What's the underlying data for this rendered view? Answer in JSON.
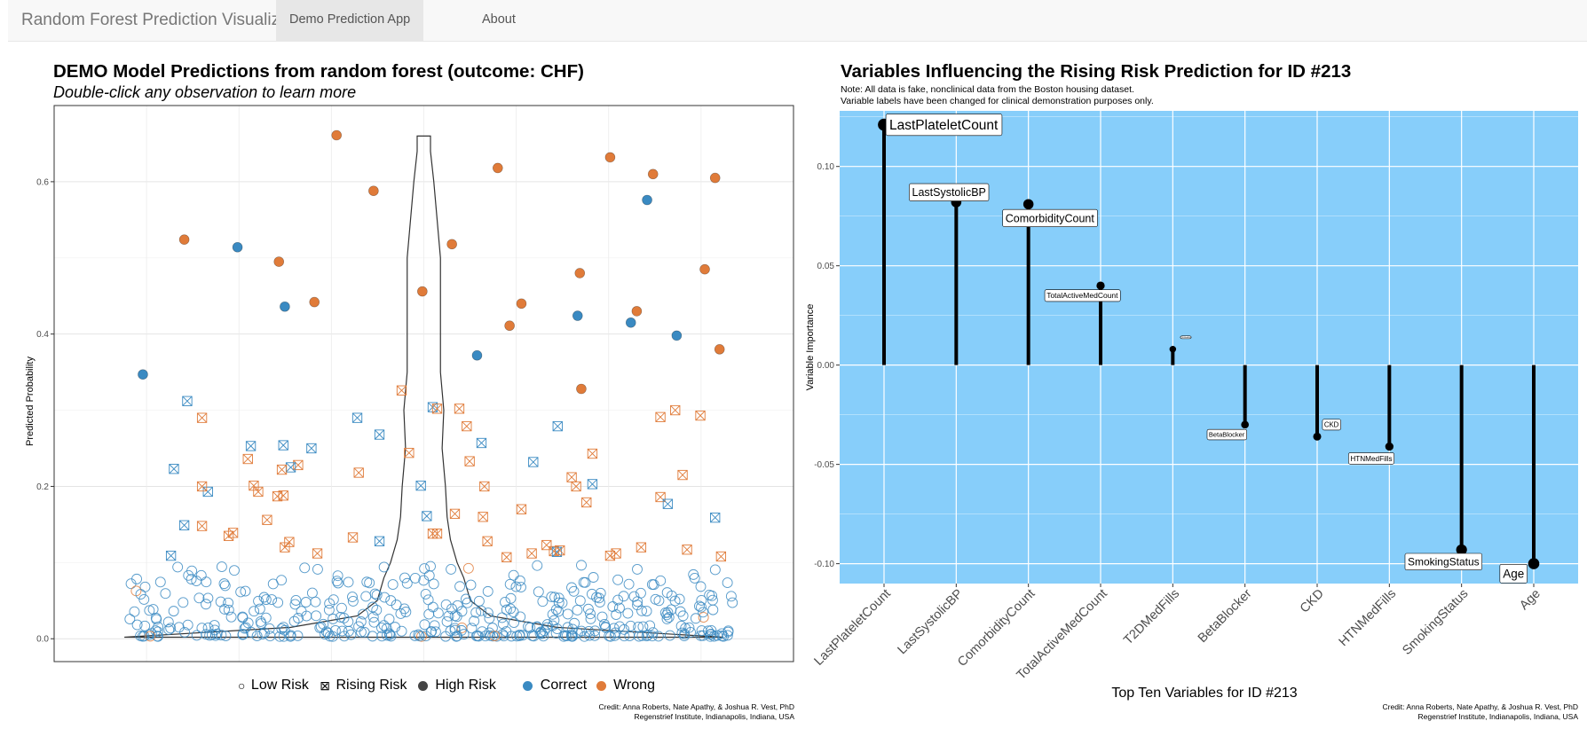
{
  "navbar": {
    "brand": "Random Forest Prediction Visualization",
    "tabs": [
      {
        "label": "Demo Prediction App",
        "active": true
      },
      {
        "label": "About",
        "active": false
      }
    ]
  },
  "left_panel": {
    "title": "DEMO Model Predictions from random forest (outcome: CHF)",
    "subtitle": "Double-click any observation to learn more",
    "credit_line1": "Credit: Anna Roberts, Nate Apathy, & Joshua R. Vest, PhD",
    "credit_line2": "Regenstrief Institute, Indianapolis, Indiana, USA",
    "legend": {
      "low_risk": "Low Risk",
      "rising_risk": "Rising Risk",
      "high_risk": "High Risk",
      "correct": "Correct",
      "wrong": "Wrong",
      "low_symbol": "○",
      "rising_symbol": "⊠"
    }
  },
  "right_panel": {
    "title": "Variables Influencing the Rising Risk Prediction for ID #213",
    "note_line1": "Note: All data is fake, nonclinical data from the Boston housing dataset.",
    "note_line2": "Variable labels have been changed for clinical demonstration purposes only.",
    "credit_line1": "Credit: Anna Roberts, Nate Apathy, & Joshua R. Vest, PhD",
    "credit_line2": "Regenstrief Institute, Indianapolis, Indiana, USA"
  },
  "colors": {
    "correct": "#3a8ac2",
    "wrong": "#e07b39",
    "plot_bg_right": "#87cefa",
    "nav_bg": "#f8f8f8"
  },
  "chart_data": [
    {
      "type": "scatter",
      "title": "DEMO Model Predictions from random forest (outcome: CHF)",
      "xlabel": "",
      "ylabel": "Predicted Probability",
      "ylim": [
        -0.03,
        0.7
      ],
      "xlim": [
        0,
        1
      ],
      "yticks": [
        "0.0",
        "0.2",
        "0.4",
        "0.6"
      ],
      "ytick_values": [
        0,
        0.2,
        0.4,
        0.6
      ],
      "violin_profile": [
        [
          0.002,
          0.09
        ],
        [
          0.015,
          0.04
        ],
        [
          0.03,
          0.02
        ],
        [
          0.05,
          0.014
        ],
        [
          0.08,
          0.012
        ],
        [
          0.1,
          0.01
        ],
        [
          0.13,
          0.008
        ],
        [
          0.16,
          0.007
        ],
        [
          0.2,
          0.0065
        ],
        [
          0.25,
          0.0055
        ],
        [
          0.3,
          0.006
        ],
        [
          0.35,
          0.005
        ],
        [
          0.4,
          0.005
        ],
        [
          0.45,
          0.005
        ],
        [
          0.5,
          0.005
        ],
        [
          0.55,
          0.004
        ],
        [
          0.6,
          0.003
        ],
        [
          0.64,
          0.002
        ],
        [
          0.66,
          0.002
        ]
      ],
      "high_risk_points": [
        {
          "x": 0.12,
          "y": 0.347,
          "status": "correct"
        },
        {
          "x": 0.176,
          "y": 0.524,
          "status": "wrong"
        },
        {
          "x": 0.248,
          "y": 0.514,
          "status": "correct"
        },
        {
          "x": 0.304,
          "y": 0.495,
          "status": "wrong"
        },
        {
          "x": 0.312,
          "y": 0.436,
          "status": "correct"
        },
        {
          "x": 0.352,
          "y": 0.442,
          "status": "wrong"
        },
        {
          "x": 0.382,
          "y": 0.661,
          "status": "wrong"
        },
        {
          "x": 0.432,
          "y": 0.588,
          "status": "wrong"
        },
        {
          "x": 0.498,
          "y": 0.456,
          "status": "wrong"
        },
        {
          "x": 0.538,
          "y": 0.518,
          "status": "wrong"
        },
        {
          "x": 0.572,
          "y": 0.372,
          "status": "correct"
        },
        {
          "x": 0.6,
          "y": 0.618,
          "status": "wrong"
        },
        {
          "x": 0.616,
          "y": 0.411,
          "status": "wrong"
        },
        {
          "x": 0.632,
          "y": 0.44,
          "status": "wrong"
        },
        {
          "x": 0.708,
          "y": 0.424,
          "status": "correct"
        },
        {
          "x": 0.711,
          "y": 0.48,
          "status": "wrong"
        },
        {
          "x": 0.713,
          "y": 0.328,
          "status": "wrong"
        },
        {
          "x": 0.752,
          "y": 0.632,
          "status": "wrong"
        },
        {
          "x": 0.78,
          "y": 0.415,
          "status": "correct"
        },
        {
          "x": 0.788,
          "y": 0.43,
          "status": "wrong"
        },
        {
          "x": 0.802,
          "y": 0.576,
          "status": "correct"
        },
        {
          "x": 0.81,
          "y": 0.61,
          "status": "wrong"
        },
        {
          "x": 0.842,
          "y": 0.398,
          "status": "correct"
        },
        {
          "x": 0.88,
          "y": 0.485,
          "status": "wrong"
        },
        {
          "x": 0.894,
          "y": 0.605,
          "status": "wrong"
        },
        {
          "x": 0.9,
          "y": 0.38,
          "status": "wrong"
        }
      ],
      "rising_risk_points": [
        {
          "x": 0.18,
          "y": 0.312,
          "status": "correct"
        },
        {
          "x": 0.2,
          "y": 0.29,
          "status": "wrong"
        },
        {
          "x": 0.162,
          "y": 0.223,
          "status": "correct"
        },
        {
          "x": 0.266,
          "y": 0.253,
          "status": "correct"
        },
        {
          "x": 0.31,
          "y": 0.254,
          "status": "correct"
        },
        {
          "x": 0.348,
          "y": 0.25,
          "status": "correct"
        },
        {
          "x": 0.33,
          "y": 0.228,
          "status": "wrong"
        },
        {
          "x": 0.32,
          "y": 0.225,
          "status": "correct"
        },
        {
          "x": 0.308,
          "y": 0.222,
          "status": "wrong"
        },
        {
          "x": 0.208,
          "y": 0.193,
          "status": "correct"
        },
        {
          "x": 0.2,
          "y": 0.2,
          "status": "wrong"
        },
        {
          "x": 0.27,
          "y": 0.201,
          "status": "wrong"
        },
        {
          "x": 0.262,
          "y": 0.236,
          "status": "wrong"
        },
        {
          "x": 0.276,
          "y": 0.193,
          "status": "wrong"
        },
        {
          "x": 0.302,
          "y": 0.187,
          "status": "wrong"
        },
        {
          "x": 0.31,
          "y": 0.188,
          "status": "wrong"
        },
        {
          "x": 0.288,
          "y": 0.156,
          "status": "wrong"
        },
        {
          "x": 0.176,
          "y": 0.149,
          "status": "correct"
        },
        {
          "x": 0.2,
          "y": 0.148,
          "status": "wrong"
        },
        {
          "x": 0.236,
          "y": 0.135,
          "status": "wrong"
        },
        {
          "x": 0.242,
          "y": 0.139,
          "status": "wrong"
        },
        {
          "x": 0.318,
          "y": 0.127,
          "status": "wrong"
        },
        {
          "x": 0.312,
          "y": 0.12,
          "status": "wrong"
        },
        {
          "x": 0.356,
          "y": 0.112,
          "status": "wrong"
        },
        {
          "x": 0.158,
          "y": 0.109,
          "status": "correct"
        },
        {
          "x": 0.41,
          "y": 0.29,
          "status": "correct"
        },
        {
          "x": 0.412,
          "y": 0.218,
          "status": "wrong"
        },
        {
          "x": 0.44,
          "y": 0.268,
          "status": "correct"
        },
        {
          "x": 0.404,
          "y": 0.133,
          "status": "wrong"
        },
        {
          "x": 0.44,
          "y": 0.128,
          "status": "correct"
        },
        {
          "x": 0.47,
          "y": 0.326,
          "status": "wrong"
        },
        {
          "x": 0.48,
          "y": 0.244,
          "status": "wrong"
        },
        {
          "x": 0.496,
          "y": 0.201,
          "status": "correct"
        },
        {
          "x": 0.504,
          "y": 0.161,
          "status": "correct"
        },
        {
          "x": 0.512,
          "y": 0.304,
          "status": "correct"
        },
        {
          "x": 0.518,
          "y": 0.302,
          "status": "wrong"
        },
        {
          "x": 0.512,
          "y": 0.138,
          "status": "wrong"
        },
        {
          "x": 0.518,
          "y": 0.138,
          "status": "wrong"
        },
        {
          "x": 0.548,
          "y": 0.302,
          "status": "wrong"
        },
        {
          "x": 0.558,
          "y": 0.279,
          "status": "wrong"
        },
        {
          "x": 0.562,
          "y": 0.233,
          "status": "wrong"
        },
        {
          "x": 0.542,
          "y": 0.164,
          "status": "wrong"
        },
        {
          "x": 0.578,
          "y": 0.257,
          "status": "correct"
        },
        {
          "x": 0.582,
          "y": 0.2,
          "status": "wrong"
        },
        {
          "x": 0.58,
          "y": 0.16,
          "status": "wrong"
        },
        {
          "x": 0.586,
          "y": 0.128,
          "status": "wrong"
        },
        {
          "x": 0.612,
          "y": 0.107,
          "status": "wrong"
        },
        {
          "x": 0.632,
          "y": 0.17,
          "status": "wrong"
        },
        {
          "x": 0.646,
          "y": 0.112,
          "status": "wrong"
        },
        {
          "x": 0.648,
          "y": 0.232,
          "status": "correct"
        },
        {
          "x": 0.666,
          "y": 0.123,
          "status": "wrong"
        },
        {
          "x": 0.676,
          "y": 0.115,
          "status": "wrong"
        },
        {
          "x": 0.68,
          "y": 0.114,
          "status": "correct"
        },
        {
          "x": 0.684,
          "y": 0.116,
          "status": "wrong"
        },
        {
          "x": 0.681,
          "y": 0.279,
          "status": "correct"
        },
        {
          "x": 0.7,
          "y": 0.212,
          "status": "wrong"
        },
        {
          "x": 0.706,
          "y": 0.2,
          "status": "wrong"
        },
        {
          "x": 0.72,
          "y": 0.179,
          "status": "wrong"
        },
        {
          "x": 0.728,
          "y": 0.203,
          "status": "correct"
        },
        {
          "x": 0.728,
          "y": 0.243,
          "status": "wrong"
        },
        {
          "x": 0.752,
          "y": 0.109,
          "status": "wrong"
        },
        {
          "x": 0.76,
          "y": 0.112,
          "status": "wrong"
        },
        {
          "x": 0.794,
          "y": 0.12,
          "status": "wrong"
        },
        {
          "x": 0.82,
          "y": 0.291,
          "status": "wrong"
        },
        {
          "x": 0.82,
          "y": 0.186,
          "status": "wrong"
        },
        {
          "x": 0.83,
          "y": 0.177,
          "status": "correct"
        },
        {
          "x": 0.84,
          "y": 0.3,
          "status": "wrong"
        },
        {
          "x": 0.85,
          "y": 0.215,
          "status": "wrong"
        },
        {
          "x": 0.856,
          "y": 0.117,
          "status": "wrong"
        },
        {
          "x": 0.874,
          "y": 0.293,
          "status": "wrong"
        },
        {
          "x": 0.894,
          "y": 0.159,
          "status": "correct"
        },
        {
          "x": 0.902,
          "y": 0.108,
          "status": "wrong"
        }
      ],
      "low_risk_seed": 213,
      "low_risk_count": 420
    },
    {
      "type": "lollipop",
      "title": "Variables Influencing the Rising Risk Prediction for ID #213",
      "xlabel": "Top Ten Variables for ID #213",
      "ylabel": "Variable Importance",
      "ylim": [
        -0.11,
        0.128
      ],
      "yticks": [
        "0.10",
        "0.05",
        "0.00",
        "-0.05",
        "-0.10"
      ],
      "ytick_values": [
        0.1,
        0.05,
        0,
        -0.05,
        -0.1
      ],
      "categories": [
        "LastPlateletCount",
        "LastSystolicBP",
        "ComorbidityCount",
        "TotalActiveMedCount",
        "T2DMedFills",
        "BetaBlocker",
        "CKD",
        "HTNMedFills",
        "SmokingStatus",
        "Age"
      ],
      "values": [
        0.121,
        0.082,
        0.081,
        0.04,
        0.008,
        -0.03,
        -0.036,
        -0.041,
        -0.093,
        -0.1
      ],
      "label_sizes": [
        1.55,
        1.25,
        1.25,
        0.85,
        0.2,
        0.75,
        0.78,
        0.82,
        1.2,
        1.35
      ],
      "label_dx": [
        0.0,
        -0.1,
        0.3,
        -0.25,
        0.18,
        -0.25,
        0.2,
        -0.25,
        -0.25,
        -0.28
      ],
      "label_dy": [
        0.0,
        0.005,
        -0.007,
        -0.005,
        0.006,
        -0.005,
        0.006,
        -0.006,
        -0.006,
        -0.005
      ]
    }
  ]
}
